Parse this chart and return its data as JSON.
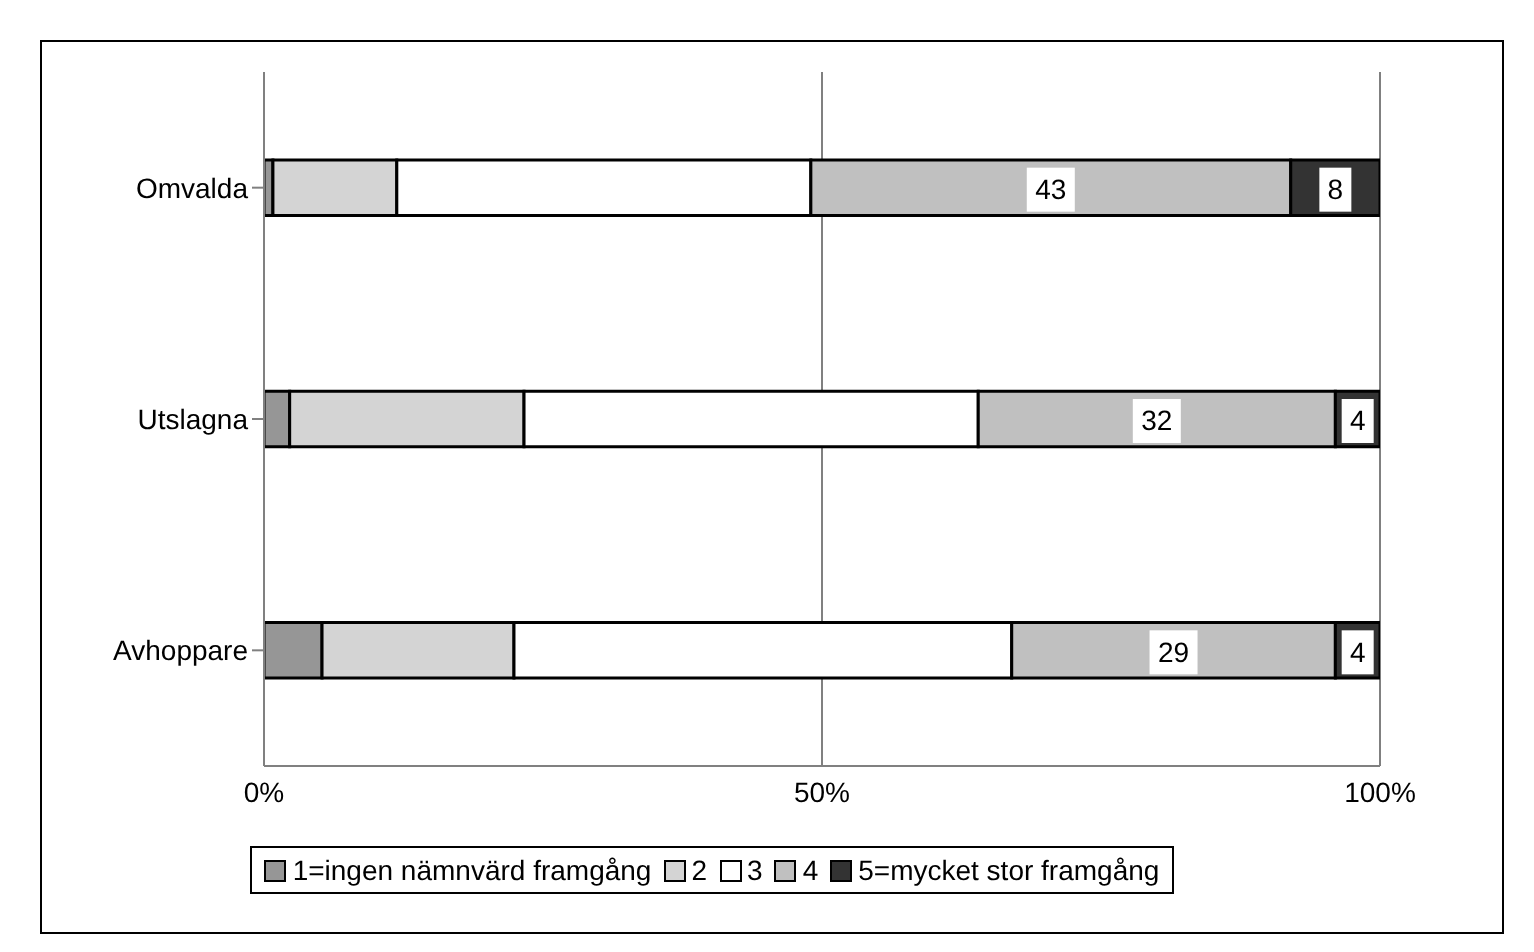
{
  "chart_data": {
    "type": "bar",
    "orientation": "horizontal",
    "stacked": true,
    "categories": [
      "Omvalda",
      "Utslagna",
      "Avhoppare"
    ],
    "series": [
      {
        "name": "1=ingen nämnvärd framgång",
        "color": "#969696",
        "values": [
          0.8,
          2.3,
          5.2
        ]
      },
      {
        "name": "2",
        "color": "#d4d4d4",
        "values": [
          11.1,
          21.0,
          17.2
        ]
      },
      {
        "name": "3",
        "color": "#ffffff",
        "values": [
          37.1,
          40.7,
          44.6
        ]
      },
      {
        "name": "4",
        "color": "#c0c0c0",
        "values": [
          43,
          32,
          29
        ],
        "value_labels": [
          "43",
          "32",
          "29"
        ]
      },
      {
        "name": "5=mycket stor framgång",
        "color": "#333333",
        "values": [
          8,
          4,
          4
        ],
        "value_labels": [
          "8",
          "4",
          "4"
        ]
      }
    ],
    "xlim": [
      0,
      100
    ],
    "xticks": [
      {
        "value": 0,
        "label": "0%"
      },
      {
        "value": 50,
        "label": "50%"
      },
      {
        "value": 100,
        "label": "100%"
      }
    ],
    "grid": "x",
    "legend": "bottom"
  }
}
